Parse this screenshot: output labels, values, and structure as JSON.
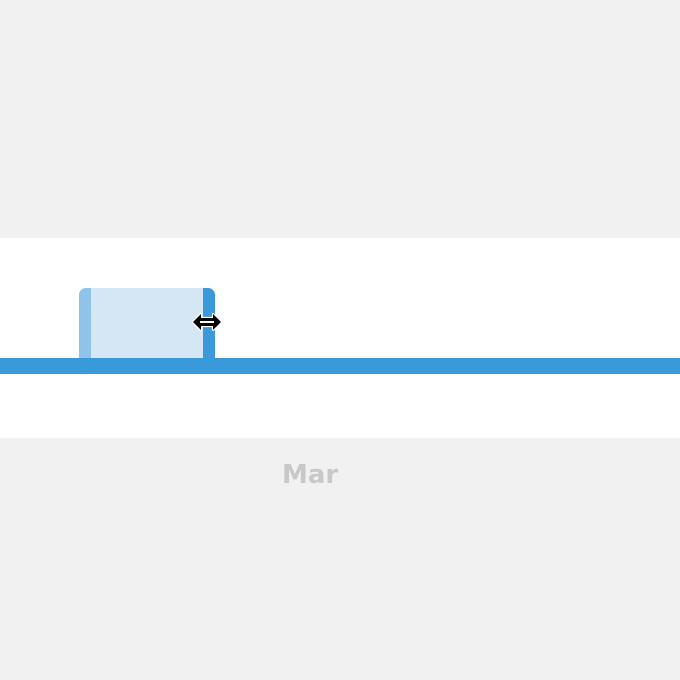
{
  "timeline": {
    "month_label": "Mar",
    "selected_range": {
      "start_fraction": 0.116,
      "end_fraction": 0.316
    }
  },
  "colors": {
    "background": "#f1f1f1",
    "panel": "#ffffff",
    "track": "#3a9ad9",
    "range_fill": "#d5e7f5",
    "handle_left": "#8fc3ea",
    "handle_right": "#3a9ad9",
    "label": "#c8c8c8"
  },
  "cursor": {
    "icon": "resize-horizontal-cursor-icon"
  }
}
